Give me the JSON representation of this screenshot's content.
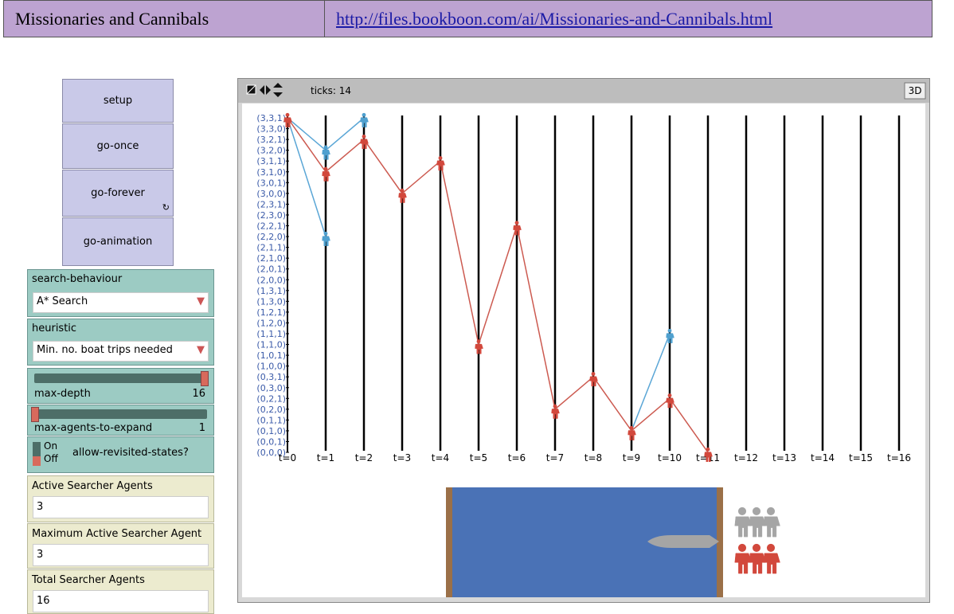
{
  "header": {
    "title": "Missionaries and Cannibals",
    "url": "http://files.bookboon.com/ai/Missionaries-and-Cannibals.html"
  },
  "buttons": [
    "setup",
    "go-once",
    "go-forever",
    "go-animation"
  ],
  "choosers": [
    {
      "label": "search-behaviour",
      "value": "A* Search"
    },
    {
      "label": "heuristic",
      "value": "Min. no. boat trips needed"
    }
  ],
  "sliders": [
    {
      "label": "max-depth",
      "value": "16"
    },
    {
      "label": "max-agents-to-expand",
      "value": "1"
    }
  ],
  "switch": {
    "on": "On",
    "off": "Off",
    "label": "allow-revisited-states?"
  },
  "monitors": [
    {
      "label": "Active Searcher Agents",
      "value": "3"
    },
    {
      "label": "Maximum Active Searcher Agent",
      "value": "3"
    },
    {
      "label": "Total Searcher Agents",
      "value": "16"
    }
  ],
  "view": {
    "ticks": "ticks: 14",
    "button_3d": "3D",
    "state_labels": [
      "(3,3,1)",
      "(3,3,0)",
      "(3,2,1)",
      "(3,2,0)",
      "(3,1,1)",
      "(3,1,0)",
      "(3,0,1)",
      "(3,0,0)",
      "(2,3,1)",
      "(2,3,0)",
      "(2,2,1)",
      "(2,2,0)",
      "(2,1,1)",
      "(2,1,0)",
      "(2,0,1)",
      "(2,0,0)",
      "(1,3,1)",
      "(1,3,0)",
      "(1,2,1)",
      "(1,2,0)",
      "(1,1,1)",
      "(1,1,0)",
      "(1,0,1)",
      "(1,0,0)",
      "(0,3,1)",
      "(0,3,0)",
      "(0,2,1)",
      "(0,2,0)",
      "(0,1,1)",
      "(0,1,0)",
      "(0,0,1)",
      "(0,0,0)"
    ],
    "time_labels": [
      "t=0",
      "t=1",
      "t=2",
      "t=3",
      "t=4",
      "t=5",
      "t=6",
      "t=7",
      "t=8",
      "t=9",
      "t=10",
      "t=11",
      "t=12",
      "t=13",
      "t=14",
      "t=15",
      "t=16"
    ],
    "red_path": [
      0,
      5,
      2,
      7,
      4,
      21,
      10,
      27,
      24,
      29,
      26,
      31
    ],
    "blue_edges": [
      [
        0,
        0,
        1,
        3
      ],
      [
        0,
        0,
        1,
        11
      ],
      [
        1,
        3,
        2,
        0
      ],
      [
        9,
        29,
        10,
        20
      ]
    ]
  }
}
